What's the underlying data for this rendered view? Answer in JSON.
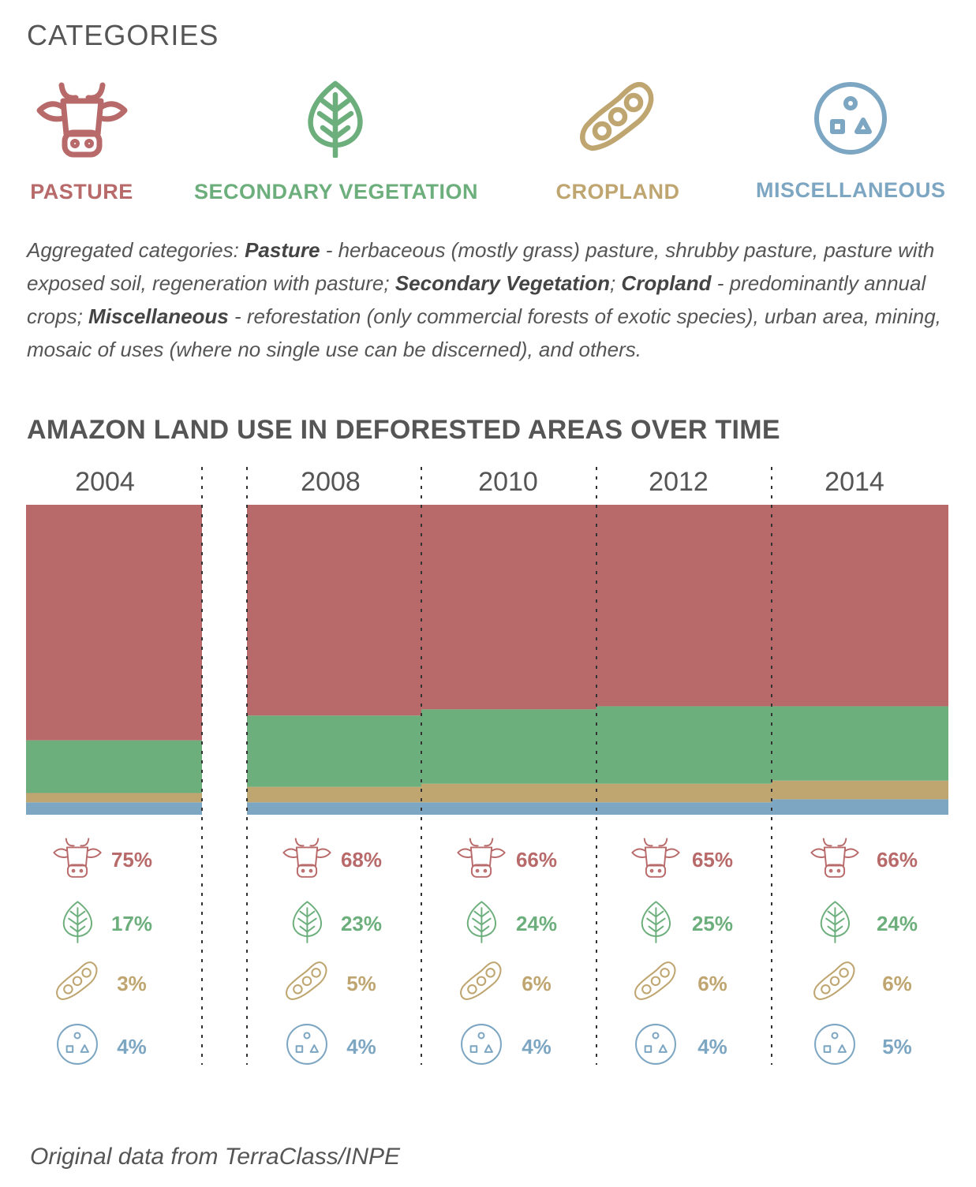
{
  "categories_heading": "CATEGORIES",
  "colors": {
    "pasture": "#b86a6a",
    "secondary_vegetation": "#6daf7c",
    "cropland": "#bfa570",
    "miscellaneous": "#7da6c2"
  },
  "categories": [
    {
      "key": "pasture",
      "label": "PASTURE",
      "icon": "cow-icon"
    },
    {
      "key": "secondary_vegetation",
      "label": "SECONDARY VEGETATION",
      "icon": "leaf-icon"
    },
    {
      "key": "cropland",
      "label": "CROPLAND",
      "icon": "bean-pod-icon"
    },
    {
      "key": "miscellaneous",
      "label": "MISCELLANEOUS",
      "icon": "shapes-circle-icon"
    }
  ],
  "description": {
    "t1": "Aggregated categories: ",
    "b1": "Pasture",
    "t2": " - herbaceous (mostly grass) pasture, shrubby pasture, pasture with exposed soil, regeneration with pasture; ",
    "b2": "Secondary Vegetation",
    "t3": "; ",
    "b3": "Cropland",
    "t4": " - predominantly annual crops; ",
    "b4": "Miscellaneous",
    "t5": " - reforestation (only commercial forests of exotic species), urban area, mining, mosaic of uses (where no single use can be discerned), and others."
  },
  "chart_data": {
    "type": "bar",
    "title": "AMAZON LAND USE IN DEFORESTED AREAS OVER TIME",
    "categories": [
      "2004",
      "2008",
      "2010",
      "2012",
      "2014"
    ],
    "series": [
      {
        "key": "miscellaneous",
        "values": [
          4,
          4,
          4,
          4,
          5
        ],
        "labels": [
          "4%",
          "4%",
          "4%",
          "4%",
          "5%"
        ]
      },
      {
        "key": "cropland",
        "values": [
          3,
          5,
          6,
          6,
          6
        ],
        "labels": [
          "3%",
          "5%",
          "6%",
          "6%",
          "6%"
        ]
      },
      {
        "key": "secondary_vegetation",
        "values": [
          17,
          23,
          24,
          25,
          24
        ],
        "labels": [
          "17%",
          "23%",
          "24%",
          "25%",
          "24%"
        ]
      },
      {
        "key": "pasture",
        "values": [
          75,
          68,
          66,
          65,
          66
        ],
        "labels": [
          "75%",
          "68%",
          "66%",
          "65%",
          "66%"
        ]
      }
    ],
    "stacked": true,
    "ylim": [
      0,
      100
    ],
    "grid": false,
    "legend": "top"
  },
  "source": "Original data from TerraClass/INPE"
}
